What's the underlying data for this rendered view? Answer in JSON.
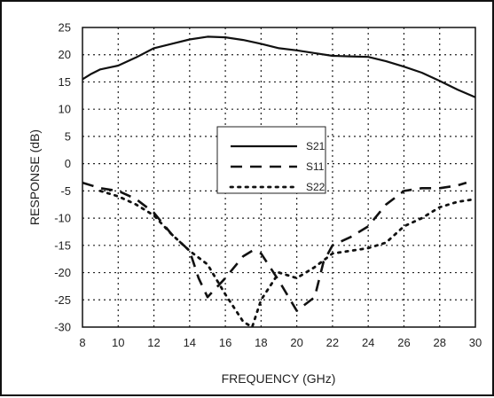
{
  "chart_data": {
    "type": "line",
    "title": "",
    "xlabel": "FREQUENCY (GHz)",
    "ylabel": "RESPONSE (dB)",
    "xlim": [
      8,
      30
    ],
    "ylim": [
      -30,
      25
    ],
    "xticks": [
      8,
      10,
      12,
      14,
      16,
      18,
      20,
      22,
      24,
      26,
      28,
      30
    ],
    "yticks": [
      25,
      20,
      15,
      10,
      5,
      0,
      -5,
      -10,
      -15,
      -20,
      -25,
      -30
    ],
    "grid": true,
    "legend_position": "center",
    "series": [
      {
        "name": "S21",
        "style": "solid",
        "x": [
          8,
          8.5,
          9,
          10,
          11,
          12,
          13,
          14,
          15,
          16,
          17,
          18,
          19,
          20,
          21,
          22,
          23,
          24,
          25,
          26,
          27,
          28,
          29,
          30
        ],
        "y": [
          15.5,
          16.5,
          17.3,
          18,
          19.5,
          21.2,
          22,
          22.8,
          23.3,
          23.2,
          22.7,
          22,
          21.2,
          20.8,
          20.3,
          19.8,
          19.7,
          19.6,
          18.8,
          17.8,
          16.7,
          15.2,
          13.6,
          12.2
        ]
      },
      {
        "name": "S11",
        "style": "dashed",
        "x": [
          8,
          9,
          10,
          11,
          12,
          13,
          14,
          14.5,
          15,
          16,
          17,
          17.5,
          18,
          19,
          20,
          21,
          21.5,
          22,
          23,
          24,
          25,
          26,
          27,
          28,
          29,
          29.5
        ],
        "y": [
          -3.5,
          -4.5,
          -5,
          -6.5,
          -9,
          -13,
          -16,
          -21,
          -24.5,
          -21,
          -17,
          -16,
          -16.5,
          -21.5,
          -27,
          -24.5,
          -18,
          -15,
          -13.5,
          -11.5,
          -7.5,
          -5,
          -4.5,
          -4.5,
          -4,
          -3.5
        ]
      },
      {
        "name": "S22",
        "style": "dotted",
        "x": [
          9,
          10,
          11,
          12,
          13,
          14,
          15,
          16,
          17,
          17.5,
          18,
          19,
          20,
          21,
          22,
          23,
          24,
          25,
          26,
          27,
          28,
          29,
          30
        ],
        "y": [
          -5,
          -6,
          -7.5,
          -9.5,
          -13,
          -16,
          -18.5,
          -24,
          -29,
          -30,
          -25,
          -20,
          -21,
          -19,
          -16.5,
          -16,
          -15.5,
          -14.5,
          -11.5,
          -10,
          -8,
          -7,
          -6.5
        ]
      }
    ]
  }
}
